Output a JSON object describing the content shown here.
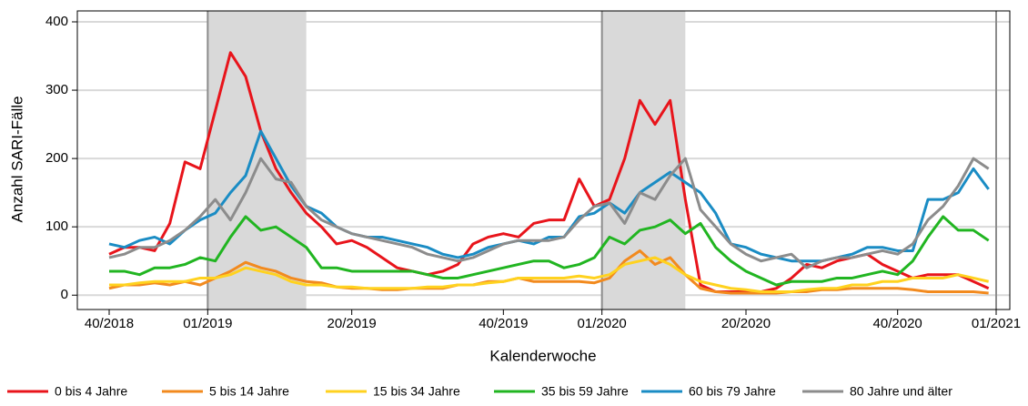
{
  "chart_data": {
    "type": "line",
    "ylabel": "Anzahl SARI-Fälle",
    "xlabel": "Kalenderwoche",
    "x": [
      0,
      2,
      4,
      6,
      8,
      10,
      12,
      14,
      16,
      18,
      20,
      22,
      24,
      26,
      28,
      30,
      32,
      34,
      36,
      38,
      40,
      42,
      44,
      46,
      48,
      50,
      52,
      54,
      56,
      58,
      60,
      62,
      64,
      66,
      68,
      70,
      72,
      74,
      76,
      78,
      80,
      82,
      84,
      86,
      88,
      90,
      92,
      94,
      96,
      98,
      100,
      102,
      104,
      106,
      108,
      110,
      112,
      114,
      116
    ],
    "xlim": [
      -4.2,
      118.8
    ],
    "xticks": [
      {
        "value": 0,
        "label": "40/2018"
      },
      {
        "value": 13,
        "label": "01/2019"
      },
      {
        "value": 32,
        "label": "20/2019"
      },
      {
        "value": 52,
        "label": "40/2019"
      },
      {
        "value": 65,
        "label": "01/2020"
      },
      {
        "value": 84,
        "label": "20/2020"
      },
      {
        "value": 104,
        "label": "40/2020"
      },
      {
        "value": 117,
        "label": "01/2021"
      }
    ],
    "ylim": [
      -21,
      416
    ],
    "yticks": [
      0,
      100,
      200,
      300,
      400
    ],
    "grid": true,
    "shaded": [
      [
        13,
        26
      ],
      [
        65,
        76
      ]
    ],
    "vlines": [
      13,
      65,
      117
    ],
    "series": [
      {
        "name": "0 bis 4 Jahre",
        "color": "#e8141b",
        "values": [
          60,
          70,
          70,
          65,
          105,
          195,
          185,
          270,
          355,
          320,
          240,
          185,
          150,
          120,
          100,
          75,
          80,
          70,
          55,
          40,
          35,
          30,
          35,
          45,
          75,
          85,
          90,
          85,
          105,
          110,
          110,
          170,
          130,
          140,
          200,
          285,
          250,
          285,
          140,
          15,
          5,
          5,
          5,
          5,
          10,
          25,
          45,
          40,
          50,
          55,
          60,
          45,
          35,
          25,
          30,
          30,
          30,
          20,
          10
        ]
      },
      {
        "name": "5 bis 14 Jahre",
        "color": "#f28a1e",
        "values": [
          10,
          15,
          15,
          18,
          15,
          20,
          15,
          25,
          35,
          48,
          40,
          35,
          25,
          20,
          18,
          12,
          10,
          10,
          8,
          8,
          10,
          10,
          10,
          15,
          15,
          20,
          20,
          25,
          20,
          20,
          20,
          20,
          18,
          25,
          50,
          65,
          45,
          55,
          30,
          10,
          5,
          3,
          3,
          3,
          3,
          5,
          5,
          8,
          8,
          10,
          10,
          10,
          10,
          8,
          5,
          5,
          5,
          5,
          3
        ]
      },
      {
        "name": "15 bis 34 Jahre",
        "color": "#ffd21f",
        "values": [
          15,
          15,
          18,
          20,
          20,
          20,
          25,
          25,
          30,
          40,
          35,
          30,
          20,
          15,
          15,
          12,
          12,
          10,
          10,
          10,
          10,
          12,
          12,
          15,
          15,
          18,
          20,
          25,
          25,
          25,
          25,
          28,
          25,
          30,
          45,
          50,
          55,
          45,
          30,
          20,
          15,
          10,
          8,
          5,
          5,
          5,
          8,
          10,
          10,
          15,
          15,
          20,
          20,
          25,
          25,
          25,
          30,
          25,
          20
        ]
      },
      {
        "name": "35 bis 59 Jahre",
        "color": "#21b521",
        "values": [
          35,
          35,
          30,
          40,
          40,
          45,
          55,
          50,
          85,
          115,
          95,
          100,
          85,
          70,
          40,
          40,
          35,
          35,
          35,
          35,
          35,
          30,
          25,
          25,
          30,
          35,
          40,
          45,
          50,
          50,
          40,
          45,
          55,
          85,
          75,
          95,
          100,
          110,
          90,
          105,
          70,
          50,
          35,
          25,
          15,
          20,
          20,
          20,
          25,
          25,
          30,
          35,
          30,
          50,
          85,
          115,
          95,
          95,
          80
        ]
      },
      {
        "name": "60 bis 79 Jahre",
        "color": "#1a8cc4",
        "values": [
          75,
          70,
          80,
          85,
          75,
          95,
          110,
          120,
          150,
          175,
          240,
          200,
          160,
          130,
          120,
          100,
          90,
          85,
          85,
          80,
          75,
          70,
          60,
          55,
          60,
          70,
          75,
          80,
          75,
          85,
          85,
          115,
          120,
          135,
          120,
          150,
          165,
          180,
          165,
          150,
          120,
          75,
          70,
          60,
          55,
          50,
          50,
          50,
          55,
          60,
          70,
          70,
          65,
          65,
          140,
          140,
          150,
          185,
          155
        ]
      },
      {
        "name": "80 Jahre und älter",
        "color": "#8c8c8c",
        "values": [
          55,
          60,
          70,
          70,
          80,
          95,
          115,
          140,
          110,
          150,
          200,
          170,
          165,
          130,
          110,
          100,
          90,
          85,
          80,
          75,
          70,
          60,
          55,
          50,
          55,
          65,
          75,
          80,
          80,
          80,
          85,
          110,
          130,
          135,
          105,
          150,
          140,
          175,
          200,
          125,
          100,
          75,
          60,
          50,
          55,
          60,
          40,
          50,
          55,
          55,
          60,
          65,
          60,
          75,
          110,
          130,
          160,
          200,
          185
        ]
      }
    ]
  }
}
